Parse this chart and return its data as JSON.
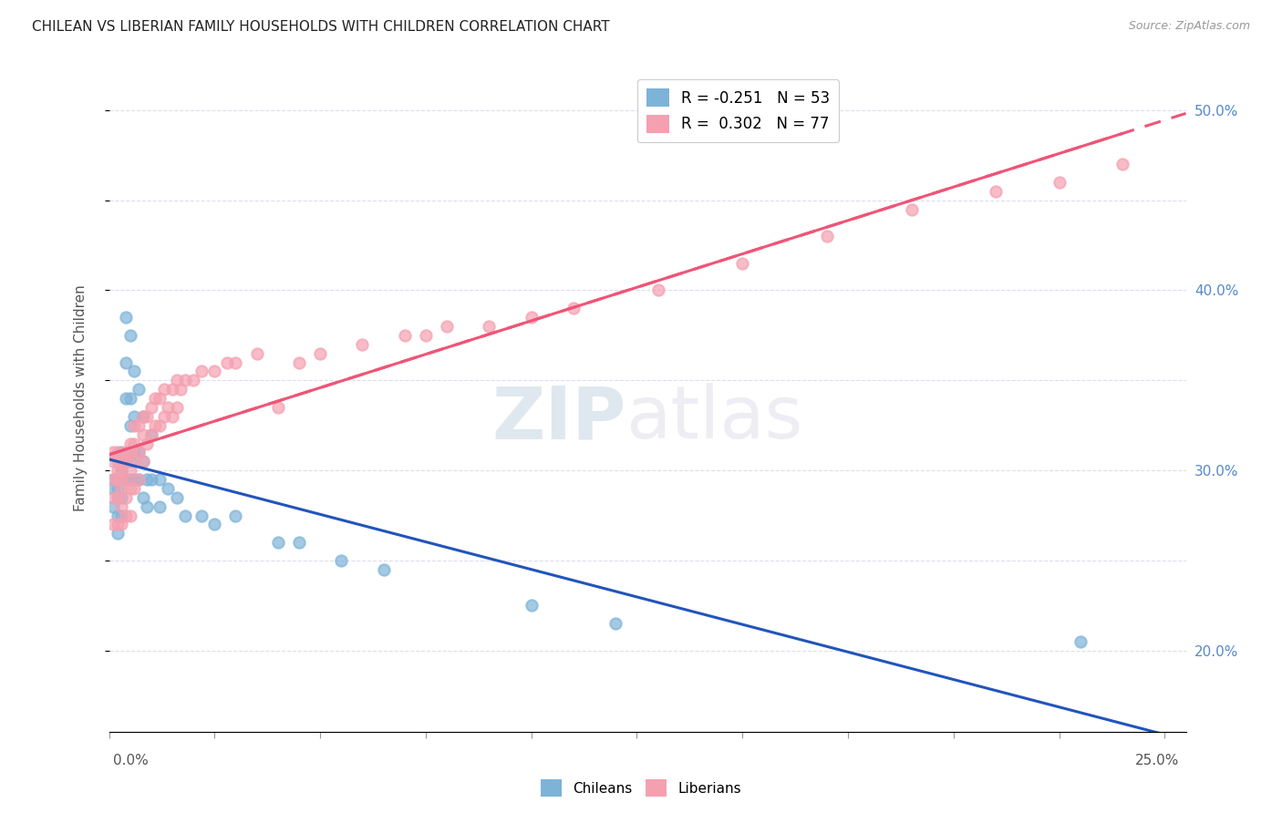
{
  "title": "CHILEAN VS LIBERIAN FAMILY HOUSEHOLDS WITH CHILDREN CORRELATION CHART",
  "source": "Source: ZipAtlas.com",
  "ylabel": "Family Households with Children",
  "xlim": [
    0.0,
    0.255
  ],
  "ylim": [
    0.155,
    0.525
  ],
  "legend_blue": "R = -0.251   N = 53",
  "legend_pink": "R =  0.302   N = 77",
  "chilean_color": "#7EB3D8",
  "liberian_color": "#F4A0B0",
  "trend_blue": "#2255BB",
  "trend_pink": "#EE5577",
  "background": "#FFFFFF",
  "grid_color": "#DDDDEE",
  "chilean_x": [
    0.001,
    0.001,
    0.001,
    0.002,
    0.002,
    0.002,
    0.002,
    0.002,
    0.003,
    0.003,
    0.003,
    0.003,
    0.003,
    0.003,
    0.004,
    0.004,
    0.004,
    0.004,
    0.004,
    0.005,
    0.005,
    0.005,
    0.005,
    0.005,
    0.006,
    0.006,
    0.006,
    0.006,
    0.007,
    0.007,
    0.007,
    0.008,
    0.008,
    0.008,
    0.009,
    0.009,
    0.01,
    0.01,
    0.012,
    0.012,
    0.014,
    0.016,
    0.018,
    0.022,
    0.025,
    0.03,
    0.04,
    0.045,
    0.055,
    0.065,
    0.1,
    0.12,
    0.23
  ],
  "chilean_y": [
    0.295,
    0.29,
    0.28,
    0.295,
    0.29,
    0.285,
    0.275,
    0.265,
    0.31,
    0.305,
    0.3,
    0.295,
    0.285,
    0.275,
    0.385,
    0.36,
    0.34,
    0.305,
    0.295,
    0.375,
    0.34,
    0.325,
    0.305,
    0.295,
    0.355,
    0.33,
    0.31,
    0.295,
    0.345,
    0.31,
    0.295,
    0.33,
    0.305,
    0.285,
    0.295,
    0.28,
    0.32,
    0.295,
    0.295,
    0.28,
    0.29,
    0.285,
    0.275,
    0.275,
    0.27,
    0.275,
    0.26,
    0.26,
    0.25,
    0.245,
    0.225,
    0.215,
    0.205
  ],
  "liberian_x": [
    0.001,
    0.001,
    0.001,
    0.001,
    0.001,
    0.002,
    0.002,
    0.002,
    0.002,
    0.002,
    0.002,
    0.003,
    0.003,
    0.003,
    0.003,
    0.003,
    0.003,
    0.004,
    0.004,
    0.004,
    0.004,
    0.004,
    0.005,
    0.005,
    0.005,
    0.005,
    0.005,
    0.006,
    0.006,
    0.006,
    0.006,
    0.007,
    0.007,
    0.007,
    0.008,
    0.008,
    0.008,
    0.009,
    0.009,
    0.01,
    0.01,
    0.011,
    0.011,
    0.012,
    0.012,
    0.013,
    0.013,
    0.014,
    0.015,
    0.015,
    0.016,
    0.016,
    0.017,
    0.018,
    0.02,
    0.022,
    0.025,
    0.028,
    0.03,
    0.035,
    0.04,
    0.045,
    0.05,
    0.06,
    0.07,
    0.075,
    0.08,
    0.09,
    0.1,
    0.11,
    0.13,
    0.15,
    0.17,
    0.19,
    0.21,
    0.225,
    0.24
  ],
  "liberian_y": [
    0.31,
    0.305,
    0.295,
    0.285,
    0.27,
    0.31,
    0.305,
    0.3,
    0.295,
    0.285,
    0.27,
    0.305,
    0.3,
    0.295,
    0.29,
    0.28,
    0.27,
    0.31,
    0.305,
    0.295,
    0.285,
    0.275,
    0.315,
    0.31,
    0.3,
    0.29,
    0.275,
    0.325,
    0.315,
    0.305,
    0.29,
    0.325,
    0.31,
    0.295,
    0.33,
    0.32,
    0.305,
    0.33,
    0.315,
    0.335,
    0.32,
    0.34,
    0.325,
    0.34,
    0.325,
    0.345,
    0.33,
    0.335,
    0.345,
    0.33,
    0.35,
    0.335,
    0.345,
    0.35,
    0.35,
    0.355,
    0.355,
    0.36,
    0.36,
    0.365,
    0.335,
    0.36,
    0.365,
    0.37,
    0.375,
    0.375,
    0.38,
    0.38,
    0.385,
    0.39,
    0.4,
    0.415,
    0.43,
    0.445,
    0.455,
    0.46,
    0.47
  ]
}
